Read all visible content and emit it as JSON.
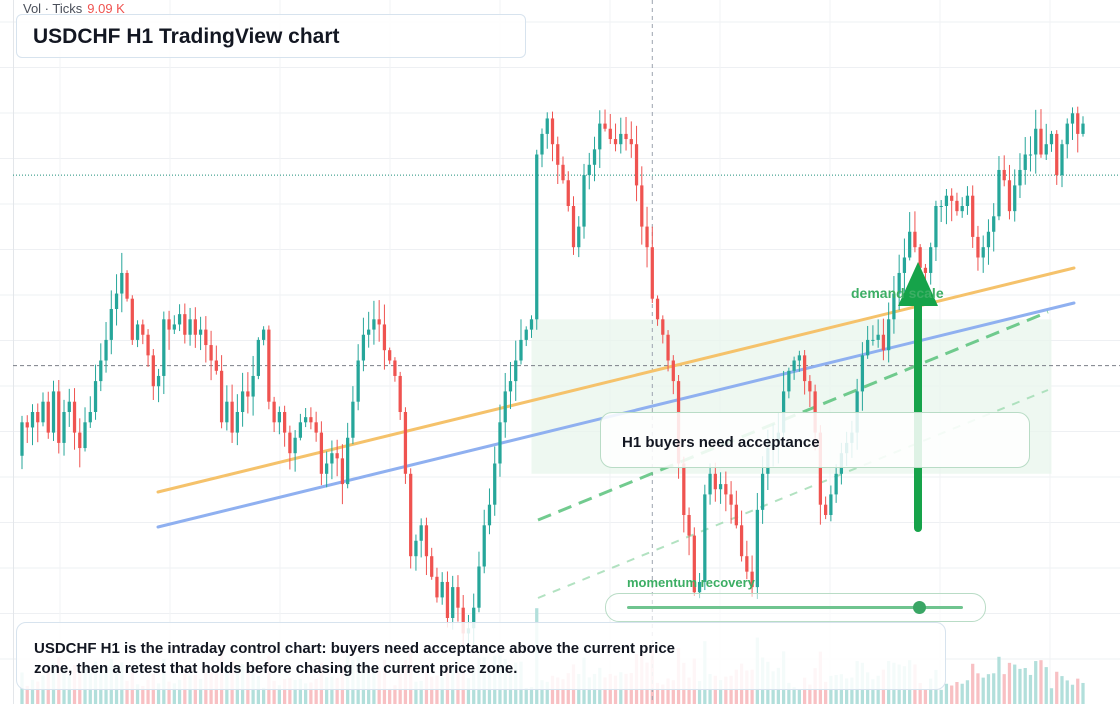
{
  "chart_data": {
    "type": "candlestick",
    "title": "USDCHF H1 TradingView chart",
    "summary": "USDCHF H1 is the intraday control chart: buyers need acceptance above the current price zone, then a retest that holds before chasing the current price zone.",
    "volume_label": "Vol · Ticks",
    "volume_value": "9.09 K",
    "callout_text": "H1 buyers need acceptance",
    "demand_label": "demand scale",
    "momentum_label": "momentum recovery",
    "momentum_level": 0.87,
    "colors": {
      "up": "#26a69a",
      "down": "#ef5350",
      "vol_up": "#b2dfdb",
      "vol_down": "#f8c0c3",
      "trend_orange": "#f5c26b",
      "trend_blue": "#8fb0f0",
      "green": "#16a34a"
    },
    "y_range": [
      0,
      100
    ],
    "current_price": 86,
    "h_level": 49,
    "bull_zone": [
      28,
      58
    ],
    "start_close": 31.5,
    "closes": [
      38,
      37,
      40,
      38,
      42,
      36,
      44,
      34,
      40,
      42,
      36,
      33,
      38,
      40,
      46,
      50,
      54,
      60,
      63,
      67,
      62,
      54,
      57,
      55,
      51,
      45,
      47,
      58,
      56,
      57,
      59,
      55,
      58,
      55,
      56,
      53,
      50,
      48,
      38,
      42,
      36,
      40,
      44,
      43,
      47,
      54,
      56,
      42,
      38,
      40,
      36,
      32,
      35,
      38,
      39,
      38,
      36,
      28,
      30,
      32,
      31,
      26,
      35,
      42,
      50,
      55,
      56,
      58,
      57,
      52,
      50,
      47,
      40,
      28,
      12,
      15,
      18,
      12,
      8,
      4,
      7,
      0,
      6,
      2,
      -3,
      -2,
      2,
      10,
      18,
      22,
      30,
      38,
      44,
      46,
      50,
      54,
      56,
      58,
      90,
      94,
      97,
      92,
      88,
      85,
      80,
      72,
      76,
      86,
      88,
      91,
      96,
      95,
      93,
      92,
      94,
      93,
      92,
      84,
      76,
      72,
      62,
      58,
      55,
      50,
      46,
      30,
      20,
      16,
      5,
      7,
      24,
      28,
      25,
      26,
      24,
      22,
      18,
      12,
      9,
      6,
      21,
      28,
      33,
      34,
      36,
      44,
      48,
      50,
      51,
      46,
      44,
      36,
      22,
      20,
      24,
      28,
      32,
      34,
      36,
      44,
      51,
      54,
      54,
      55,
      52,
      58,
      63,
      67,
      70,
      75,
      72,
      68,
      67,
      72,
      80,
      80,
      82,
      81,
      79,
      80,
      82,
      74,
      70,
      72,
      75,
      78,
      87,
      85,
      79,
      84,
      87,
      90,
      90,
      95,
      90,
      92,
      94,
      86,
      92,
      96,
      98,
      94,
      96
    ]
  }
}
